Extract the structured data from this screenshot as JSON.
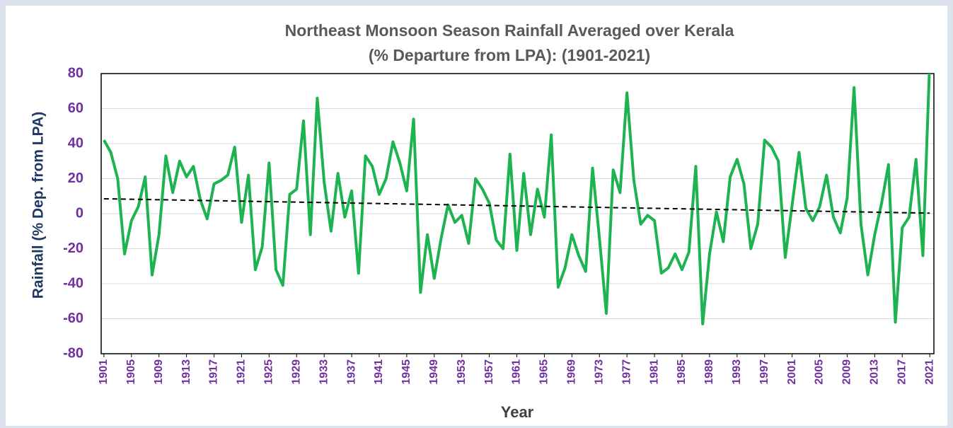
{
  "chart_data": {
    "type": "line",
    "title": "Northeast Monsoon Season Rainfall Averaged over Kerala",
    "subtitle": "(% Departure from LPA):  (1901-2021)",
    "x_label": "Year",
    "y_label": "Rainfall (% Dep. from LPA)",
    "x": [
      1901,
      1902,
      1903,
      1904,
      1905,
      1906,
      1907,
      1908,
      1909,
      1910,
      1911,
      1912,
      1913,
      1914,
      1915,
      1916,
      1917,
      1918,
      1919,
      1920,
      1921,
      1922,
      1923,
      1924,
      1925,
      1926,
      1927,
      1928,
      1929,
      1930,
      1931,
      1932,
      1933,
      1934,
      1935,
      1936,
      1937,
      1938,
      1939,
      1940,
      1941,
      1942,
      1943,
      1944,
      1945,
      1946,
      1947,
      1948,
      1949,
      1950,
      1951,
      1952,
      1953,
      1954,
      1955,
      1956,
      1957,
      1958,
      1959,
      1960,
      1961,
      1962,
      1963,
      1964,
      1965,
      1966,
      1967,
      1968,
      1969,
      1970,
      1971,
      1972,
      1973,
      1974,
      1975,
      1976,
      1977,
      1978,
      1979,
      1980,
      1981,
      1982,
      1983,
      1984,
      1985,
      1986,
      1987,
      1988,
      1989,
      1990,
      1991,
      1992,
      1993,
      1994,
      1995,
      1996,
      1997,
      1998,
      1999,
      2000,
      2001,
      2002,
      2003,
      2004,
      2005,
      2006,
      2007,
      2008,
      2009,
      2010,
      2011,
      2012,
      2013,
      2014,
      2015,
      2016,
      2017,
      2018,
      2019,
      2020,
      2021
    ],
    "series": [
      {
        "color": "#1db350",
        "values": [
          42,
          35,
          20,
          -23,
          -4,
          4,
          21,
          -35,
          -12,
          33,
          12,
          30,
          21,
          27,
          8,
          -3,
          17,
          19,
          22,
          38,
          -5,
          22,
          -32,
          -19,
          29,
          -32,
          -41,
          11,
          14,
          53,
          -12,
          66,
          18,
          -10,
          23,
          -2,
          13,
          -34,
          33,
          27,
          11,
          20,
          41,
          29,
          13,
          54,
          -45,
          -12,
          -37,
          -14,
          5,
          -5,
          -1,
          -17,
          20,
          14,
          6,
          -15,
          -20,
          34,
          -21,
          23,
          -12,
          14,
          -2,
          45,
          -42,
          -31,
          -12,
          -24,
          -33,
          26,
          -14,
          -57,
          25,
          12,
          69,
          19,
          -6,
          -1,
          -4,
          -34,
          -31,
          -23,
          -32,
          -22,
          27,
          -63,
          -23,
          1,
          -16,
          21,
          31,
          17,
          -20,
          -6,
          42,
          38,
          30,
          -25,
          5,
          35,
          3,
          -4,
          4,
          22,
          -2,
          -11,
          9,
          72,
          -6,
          -35,
          -12,
          6,
          28,
          -62,
          -8,
          -2,
          31,
          -24,
          88
        ]
      }
    ],
    "trend": {
      "x": [
        1901,
        2021
      ],
      "values": [
        8.5,
        0.3
      ],
      "color": "#000000"
    },
    "xlim": [
      1900.6,
      2021.6
    ],
    "xticks": [
      1901,
      1905,
      1909,
      1913,
      1917,
      1921,
      1925,
      1929,
      1933,
      1937,
      1941,
      1945,
      1949,
      1953,
      1957,
      1961,
      1965,
      1969,
      1973,
      1977,
      1981,
      1985,
      1989,
      1993,
      1997,
      2001,
      2005,
      2009,
      2013,
      2017,
      2021
    ],
    "ylim": [
      -80,
      80
    ],
    "yticks": [
      -80,
      -60,
      -40,
      -20,
      0,
      20,
      40,
      60,
      80
    ],
    "grid": true
  }
}
